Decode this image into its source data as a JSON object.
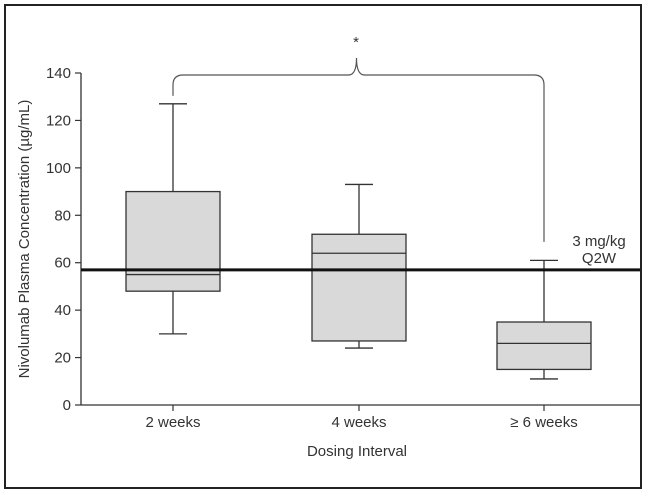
{
  "chart_data": {
    "type": "boxplot",
    "title": "",
    "xlabel": "Dosing Interval",
    "ylabel": "Nivolumab Plasma Concentration (µg/mL)",
    "ylim": [
      0,
      140
    ],
    "yticks": [
      0,
      20,
      40,
      60,
      80,
      100,
      120,
      140
    ],
    "categories": [
      "2 weeks",
      "4 weeks",
      "≥ 6 weeks"
    ],
    "boxes": [
      {
        "category": "2 weeks",
        "min": 30,
        "q1": 48,
        "median": 55,
        "q3": 90,
        "max": 127
      },
      {
        "category": "4 weeks",
        "min": 24,
        "q1": 27,
        "median": 64,
        "q3": 72,
        "max": 93
      },
      {
        "category": "≥ 6 weeks",
        "min": 11,
        "q1": 15,
        "median": 26,
        "q3": 35,
        "max": 61
      }
    ],
    "reference_line": {
      "value": 57,
      "label_line1": "3 mg/kg",
      "label_line2": "Q2W"
    },
    "significance": {
      "from": "2 weeks",
      "to": "≥ 6 weeks",
      "marker": "*"
    },
    "grid": false,
    "legend": "none",
    "colors": {
      "box_fill": "#d9d9d9",
      "stroke": "#333333",
      "reference": "#111111"
    }
  }
}
